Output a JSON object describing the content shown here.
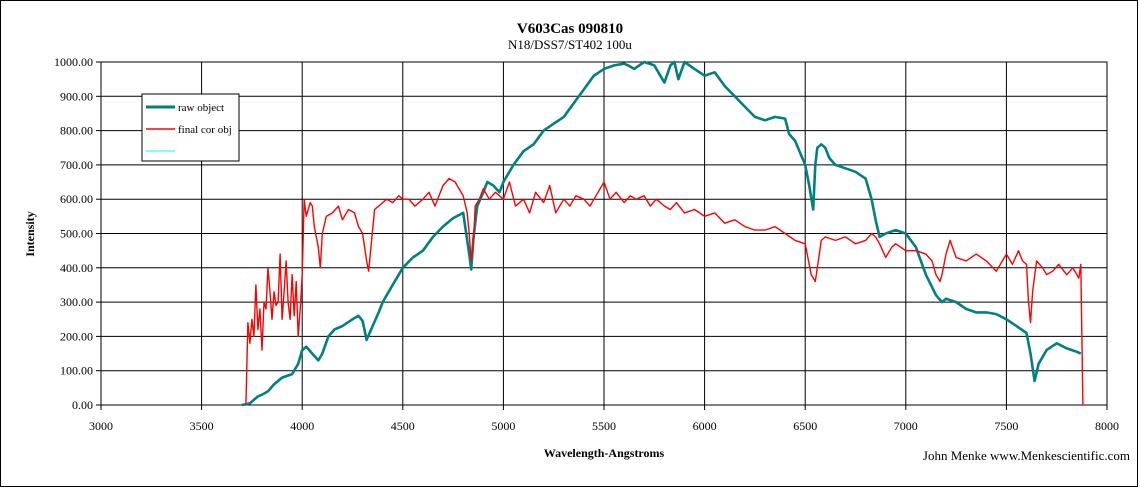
{
  "chart_data": {
    "type": "line",
    "title": "V603Cas 090810",
    "subtitle": "N18/DSS7/ST402  100u",
    "xlabel": "Wavelength-Angstroms",
    "ylabel": "Intensity",
    "xlim": [
      3000,
      8000
    ],
    "ylim": [
      0,
      1000
    ],
    "xticks": [
      3000,
      3500,
      4000,
      4500,
      5000,
      5500,
      6000,
      6500,
      7000,
      7500,
      8000
    ],
    "yticks": [
      "0.00",
      "100.00",
      "200.00",
      "300.00",
      "400.00",
      "500.00",
      "600.00",
      "700.00",
      "800.00",
      "900.00",
      "1000.00"
    ],
    "grid": true,
    "legend_position": "top-left",
    "credit": "John Menke www.Menkescientific.com",
    "series": [
      {
        "name": "raw object",
        "color": "#008080",
        "x": [
          3700,
          3720,
          3740,
          3760,
          3780,
          3800,
          3830,
          3860,
          3900,
          3950,
          3980,
          4000,
          4020,
          4050,
          4080,
          4100,
          4130,
          4160,
          4200,
          4250,
          4280,
          4300,
          4320,
          4350,
          4380,
          4400,
          4450,
          4480,
          4500,
          4550,
          4600,
          4650,
          4700,
          4750,
          4800,
          4830,
          4840,
          4850,
          4870,
          4900,
          4920,
          4950,
          4980,
          5000,
          5050,
          5100,
          5150,
          5200,
          5250,
          5300,
          5350,
          5400,
          5450,
          5500,
          5550,
          5600,
          5620,
          5650,
          5700,
          5750,
          5780,
          5800,
          5830,
          5850,
          5870,
          5900,
          5950,
          6000,
          6050,
          6100,
          6150,
          6200,
          6250,
          6300,
          6350,
          6400,
          6420,
          6450,
          6500,
          6520,
          6540,
          6550,
          6560,
          6580,
          6600,
          6620,
          6650,
          6700,
          6750,
          6800,
          6830,
          6850,
          6870,
          6900,
          6950,
          7000,
          7050,
          7100,
          7150,
          7180,
          7200,
          7250,
          7300,
          7350,
          7400,
          7450,
          7500,
          7550,
          7600,
          7620,
          7640,
          7660,
          7700,
          7750,
          7800,
          7850,
          7870
        ],
        "y": [
          0,
          2,
          5,
          15,
          25,
          30,
          40,
          60,
          80,
          90,
          120,
          160,
          170,
          150,
          130,
          150,
          200,
          220,
          230,
          250,
          260,
          245,
          190,
          230,
          270,
          300,
          350,
          380,
          400,
          430,
          450,
          490,
          520,
          545,
          560,
          440,
          395,
          480,
          580,
          620,
          650,
          640,
          620,
          650,
          700,
          740,
          760,
          800,
          820,
          840,
          880,
          920,
          960,
          980,
          990,
          995,
          990,
          980,
          1000,
          990,
          960,
          940,
          990,
          1000,
          950,
          1000,
          980,
          960,
          970,
          930,
          900,
          870,
          840,
          830,
          840,
          835,
          790,
          770,
          700,
          640,
          570,
          700,
          750,
          760,
          750,
          720,
          700,
          690,
          680,
          660,
          600,
          540,
          490,
          500,
          510,
          500,
          460,
          380,
          320,
          300,
          310,
          300,
          280,
          270,
          270,
          265,
          250,
          230,
          210,
          150,
          70,
          120,
          160,
          180,
          165,
          155,
          150
        ]
      },
      {
        "name": "final cor obj",
        "color": "#ff0000",
        "x": [
          3720,
          3730,
          3740,
          3750,
          3760,
          3770,
          3780,
          3790,
          3800,
          3810,
          3820,
          3830,
          3840,
          3850,
          3860,
          3870,
          3880,
          3890,
          3900,
          3910,
          3920,
          3930,
          3940,
          3950,
          3960,
          3970,
          3980,
          3990,
          4000,
          4010,
          4020,
          4030,
          4040,
          4050,
          4060,
          4080,
          4090,
          4100,
          4120,
          4150,
          4180,
          4200,
          4230,
          4260,
          4280,
          4300,
          4320,
          4330,
          4340,
          4360,
          4380,
          4400,
          4420,
          4450,
          4480,
          4500,
          4530,
          4560,
          4600,
          4630,
          4660,
          4700,
          4730,
          4760,
          4780,
          4800,
          4820,
          4830,
          4840,
          4850,
          4860,
          4880,
          4900,
          4930,
          4960,
          5000,
          5030,
          5060,
          5100,
          5130,
          5160,
          5200,
          5230,
          5260,
          5300,
          5330,
          5360,
          5400,
          5430,
          5460,
          5500,
          5530,
          5560,
          5600,
          5630,
          5660,
          5700,
          5730,
          5760,
          5800,
          5830,
          5860,
          5900,
          5950,
          6000,
          6050,
          6100,
          6150,
          6200,
          6250,
          6300,
          6350,
          6400,
          6450,
          6500,
          6530,
          6550,
          6560,
          6580,
          6600,
          6650,
          6700,
          6750,
          6800,
          6830,
          6850,
          6870,
          6900,
          6930,
          6950,
          7000,
          7050,
          7100,
          7130,
          7150,
          7170,
          7180,
          7200,
          7220,
          7250,
          7300,
          7350,
          7400,
          7450,
          7500,
          7530,
          7560,
          7580,
          7600,
          7610,
          7620,
          7630,
          7650,
          7680,
          7700,
          7730,
          7760,
          7800,
          7830,
          7860,
          7870,
          7880
        ],
        "y": [
          0,
          240,
          180,
          250,
          200,
          350,
          220,
          280,
          160,
          300,
          280,
          400,
          330,
          250,
          330,
          290,
          300,
          440,
          250,
          330,
          420,
          300,
          250,
          380,
          260,
          360,
          200,
          280,
          380,
          600,
          550,
          570,
          590,
          580,
          520,
          460,
          400,
          500,
          550,
          560,
          580,
          540,
          570,
          560,
          520,
          500,
          420,
          390,
          450,
          570,
          580,
          590,
          600,
          590,
          610,
          600,
          600,
          580,
          600,
          620,
          580,
          640,
          660,
          650,
          630,
          610,
          560,
          500,
          420,
          460,
          580,
          600,
          630,
          600,
          620,
          600,
          650,
          580,
          600,
          560,
          620,
          590,
          640,
          560,
          600,
          580,
          610,
          600,
          580,
          610,
          650,
          600,
          620,
          590,
          610,
          600,
          610,
          580,
          600,
          580,
          570,
          590,
          560,
          570,
          550,
          560,
          530,
          540,
          520,
          510,
          510,
          520,
          500,
          480,
          470,
          380,
          360,
          400,
          480,
          490,
          480,
          490,
          470,
          480,
          500,
          490,
          470,
          430,
          460,
          470,
          450,
          450,
          440,
          420,
          380,
          360,
          380,
          440,
          480,
          430,
          420,
          440,
          420,
          390,
          440,
          410,
          450,
          420,
          410,
          300,
          240,
          330,
          420,
          400,
          380,
          390,
          410,
          380,
          400,
          370,
          410,
          0
        ]
      },
      {
        "name": "",
        "color": "#00ffff",
        "x": [],
        "y": []
      }
    ]
  }
}
